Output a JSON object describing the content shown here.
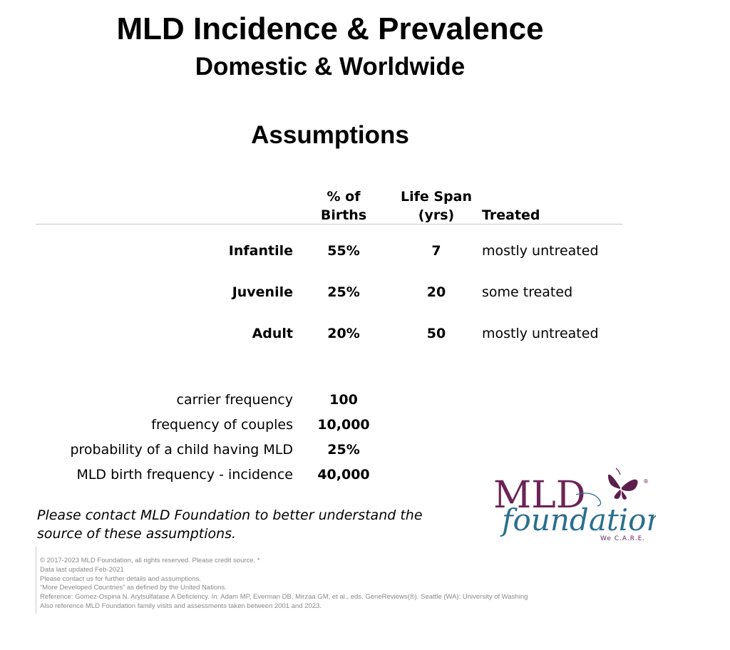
{
  "title": "MLD Incidence & Prevalence",
  "subtitle": "Domestic & Worldwide",
  "section_heading": "Assumptions",
  "table": {
    "headers": {
      "percent_line1": "% of",
      "percent_line2": "Births",
      "lifespan_line1": "Life Span",
      "lifespan_line2": "(yrs)",
      "treated": "Treated"
    },
    "rows": [
      {
        "type": "Infantile",
        "percent": "55%",
        "lifespan": "7",
        "treated": "mostly untreated"
      },
      {
        "type": "Juvenile",
        "percent": "25%",
        "lifespan": "20",
        "treated": "some treated"
      },
      {
        "type": "Adult",
        "percent": "20%",
        "lifespan": "50",
        "treated": "mostly untreated"
      }
    ]
  },
  "frequencies": [
    {
      "label": "carrier frequency",
      "value": "100"
    },
    {
      "label": "frequency of couples",
      "value": "10,000"
    },
    {
      "label": "probability of a child having MLD",
      "value": "25%"
    },
    {
      "label": "MLD birth frequency - incidence",
      "value": "40,000"
    }
  ],
  "note_line1": "Please contact MLD Foundation to better understand the",
  "note_line2": "source of these assumptions.",
  "footnotes": [
    "© 2017-2023 MLD Foundation, all rights reserved. Please credit source. *",
    "Data last updated Feb-2021",
    "Please contact us for further details and assumptions.",
    "“More Developed Countries” as defined by the United Nations.",
    "Reference: Gomez-Ospina N. Arylsulfatase A Deficiency. In: Adam MP, Everman DB, Mirzaa GM, et al., eds. GeneReviews(®). Seattle (WA): University of Washing",
    "Also reference MLD Foundation family visits and assessments taken between 2001 and 2023."
  ],
  "logo": {
    "line1": "MLD",
    "line2": "foundation",
    "tagline": "We C.A.R.E.",
    "mark": "®",
    "colors": {
      "purple": "#6b2456",
      "teal": "#2a6f8f",
      "butterfly": "#5e1e4c"
    }
  }
}
